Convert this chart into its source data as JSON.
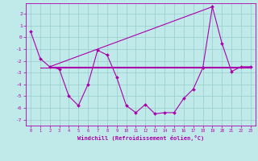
{
  "xlabel": "Windchill (Refroidissement éolien,°C)",
  "background_color": "#c0eaea",
  "line_color": "#aa00aa",
  "grid_color": "#99cccc",
  "x_values": [
    0,
    1,
    2,
    3,
    4,
    5,
    6,
    7,
    8,
    9,
    10,
    11,
    12,
    13,
    14,
    15,
    16,
    17,
    18,
    19,
    20,
    21,
    22,
    23
  ],
  "line1": [
    0.5,
    -1.8,
    -2.5,
    -2.7,
    -5.0,
    -5.8,
    -4.0,
    -1.1,
    -1.5,
    -3.4,
    -5.8,
    -6.4,
    -5.7,
    -6.5,
    -6.4,
    -6.4,
    -5.2,
    -4.4,
    -2.6,
    2.6,
    -0.5,
    -2.9,
    -2.5,
    -2.5
  ],
  "line2_x": [
    1,
    23
  ],
  "line2_y": [
    -2.6,
    -2.6
  ],
  "line3_x": [
    2,
    23
  ],
  "line3_y": [
    -2.5,
    -2.5
  ],
  "line4_x": [
    2,
    19
  ],
  "line4_y": [
    -2.5,
    2.6
  ],
  "ylim": [
    -7.5,
    2.9
  ],
  "xlim": [
    -0.5,
    23.5
  ],
  "yticks": [
    2,
    1,
    0,
    -1,
    -2,
    -3,
    -4,
    -5,
    -6,
    -7
  ],
  "xticks": [
    0,
    1,
    2,
    3,
    4,
    5,
    6,
    7,
    8,
    9,
    10,
    11,
    12,
    13,
    14,
    15,
    16,
    17,
    18,
    19,
    20,
    21,
    22,
    23
  ]
}
